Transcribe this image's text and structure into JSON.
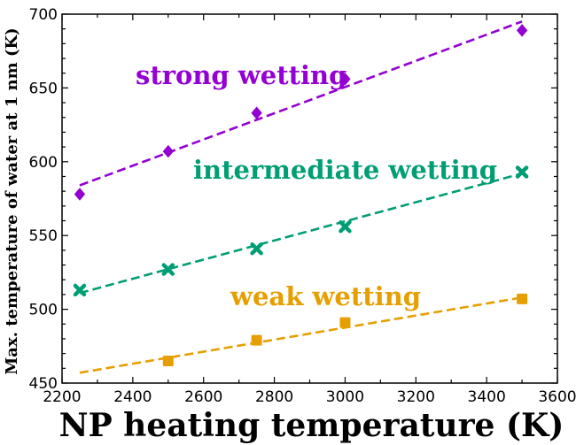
{
  "chart_data": {
    "type": "scatter",
    "title": "",
    "xlabel": "NP heating temperature (K)",
    "ylabel": "Max. temperature of  water at 1 nm (K)",
    "xlim": [
      2200,
      3600
    ],
    "ylim": [
      450,
      700
    ],
    "x_ticks": [
      2200,
      2400,
      2600,
      2800,
      3000,
      3200,
      3400,
      3600
    ],
    "y_ticks": [
      450,
      500,
      550,
      600,
      650,
      700
    ],
    "x": [
      2250,
      2500,
      2750,
      3000,
      3500
    ],
    "series": [
      {
        "name": "strong wetting",
        "color": "#9400d3",
        "marker": "diamond",
        "values": [
          578,
          607,
          633,
          656,
          689
        ],
        "fit_line": {
          "x": [
            2250,
            3500
          ],
          "y": [
            584,
            695
          ]
        }
      },
      {
        "name": "intermediate wetting",
        "color": "#009e73",
        "marker": "x",
        "values": [
          513,
          527,
          541,
          556,
          593
        ],
        "fit_line": {
          "x": [
            2250,
            3500
          ],
          "y": [
            511,
            592
          ]
        }
      },
      {
        "name": "weak wetting",
        "color": "#e69f00",
        "marker": "square",
        "values": [
          null,
          465,
          479,
          491,
          507
        ],
        "fit_line": {
          "x": [
            2250,
            3500
          ],
          "y": [
            457,
            508
          ]
        }
      }
    ]
  }
}
